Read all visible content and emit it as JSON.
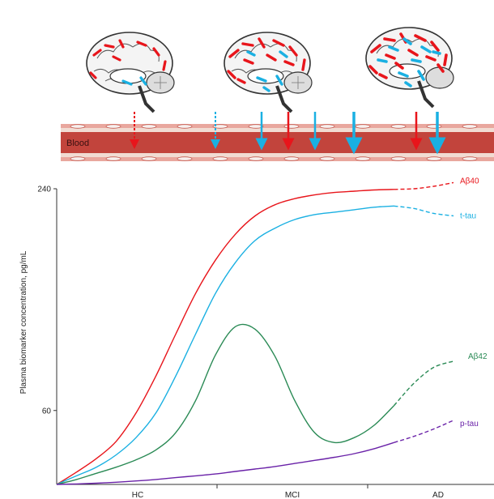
{
  "illustration": {
    "blood_label": "Blood",
    "brain_stages": [
      "early",
      "middle",
      "late"
    ]
  },
  "chart_data": {
    "type": "line",
    "title": "",
    "xlabel": "",
    "ylabel": "Plasma biomarker concentration, pg/mL",
    "x_categories": [
      "HC",
      "MCI",
      "AD"
    ],
    "x": [
      0,
      0.05,
      0.1,
      0.15,
      0.2,
      0.25,
      0.3,
      0.35,
      0.4,
      0.45,
      0.5,
      0.55,
      0.6,
      0.65,
      0.7,
      0.75,
      0.8,
      0.85,
      0.9,
      0.95,
      1.0
    ],
    "xlim": [
      0,
      1
    ],
    "yticks": [
      60,
      240
    ],
    "ylim": [
      0,
      240
    ],
    "solid_until": 0.85,
    "grid": false,
    "legend": "inline labels at line ends",
    "series": [
      {
        "name": "Aβ40",
        "color": "#e8151b",
        "values": [
          0,
          10,
          21,
          35,
          58,
          88,
          122,
          155,
          182,
          203,
          218,
          227,
          232,
          235,
          237,
          238,
          239,
          239.5,
          240,
          242,
          245
        ]
      },
      {
        "name": "t-tau",
        "color": "#1ab0e2",
        "values": [
          0,
          7,
          14,
          24,
          38,
          58,
          88,
          122,
          155,
          180,
          198,
          208,
          215,
          219,
          221,
          223,
          225,
          226,
          224,
          220,
          218
        ]
      },
      {
        "name": "Aβ42",
        "color": "#2a8a55",
        "values": [
          0,
          4,
          9,
          14,
          20,
          28,
          42,
          68,
          105,
          128,
          126,
          104,
          68,
          42,
          34,
          38,
          48,
          64,
          82,
          95,
          100
        ]
      },
      {
        "name": "p-tau",
        "color": "#6a22a8",
        "values": [
          0,
          0.4,
          1,
          1.8,
          2.8,
          4,
          5.5,
          7,
          8.5,
          10.5,
          12.5,
          14.5,
          17,
          19.5,
          22,
          25,
          29,
          34,
          39,
          45,
          52
        ]
      }
    ]
  }
}
